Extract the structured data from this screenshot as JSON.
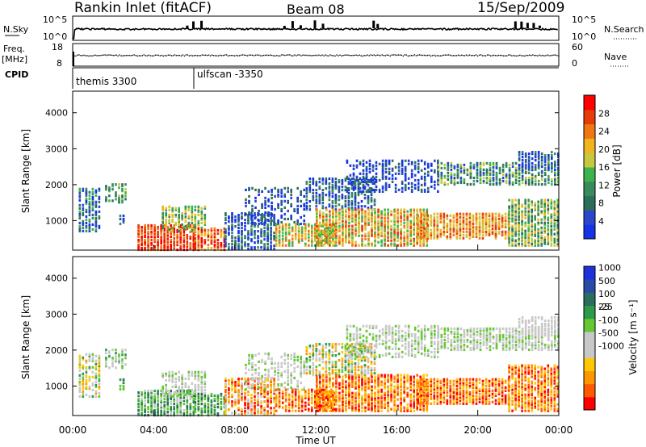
{
  "header": {
    "title": "Rankin Inlet (fitACF)",
    "beam": "Beam 08",
    "date": "15/Sep/2009"
  },
  "colors": {
    "power": [
      "#1432e6",
      "#2a46cc",
      "#2c6e5a",
      "#3a8a60",
      "#3cb44b",
      "#c8c840",
      "#f0b41e",
      "#f07814",
      "#e63c0a",
      "#ff0000"
    ],
    "velocity": [
      "#ff0000",
      "#ff5a00",
      "#ff9600",
      "#ffc800",
      "#c8c8c8",
      "#c8c8c8",
      "#64c832",
      "#2e9a4a",
      "#2a6e5e",
      "#2a4aa8",
      "#1e32dc"
    ]
  },
  "chart_data": [
    {
      "type": "line",
      "name": "noise-panel",
      "left_label": [
        "N.Sky",
        "10^5",
        "10^0"
      ],
      "right_label": [
        "N.Search",
        "10^5",
        "10^0"
      ]
    },
    {
      "type": "line",
      "name": "freq-panel",
      "left_label": [
        "Freq.",
        "[MHz]",
        "18",
        "8"
      ],
      "right_label": [
        "Nave",
        "60",
        "0"
      ],
      "freq_mhz": 12.5
    },
    {
      "type": "table",
      "name": "cpid",
      "label": "CPID",
      "entries": [
        {
          "time_h": 0.0,
          "label": "themis 3300"
        },
        {
          "time_h": 6.0,
          "label": "ulfscan -3350"
        }
      ]
    },
    {
      "type": "heatmap",
      "name": "power",
      "ylabel": "Slant Range [km]",
      "yticks": [
        1000,
        2000,
        3000,
        4000
      ],
      "ylim": [
        180,
        4600
      ],
      "xlim": [
        0,
        24
      ],
      "colorbar": {
        "label": "Power [dB]",
        "ticks": [
          4,
          8,
          12,
          16,
          20,
          24,
          28
        ],
        "range": [
          0,
          32
        ]
      }
    },
    {
      "type": "heatmap",
      "name": "velocity",
      "ylabel": "Slant Range [km]",
      "yticks": [
        1000,
        2000,
        3000,
        4000
      ],
      "ylim": [
        180,
        4600
      ],
      "xlim": [
        0,
        24
      ],
      "xticks": [
        "00:00",
        "04:00",
        "08:00",
        "12:00",
        "16:00",
        "20:00",
        "00:00"
      ],
      "xlabel": "Time UT",
      "colorbar": {
        "label": "Velocity [m s⁻¹]",
        "ticks": [
          1000,
          500,
          100,
          25,
          -25,
          -100,
          -500,
          -1000
        ]
      }
    }
  ]
}
